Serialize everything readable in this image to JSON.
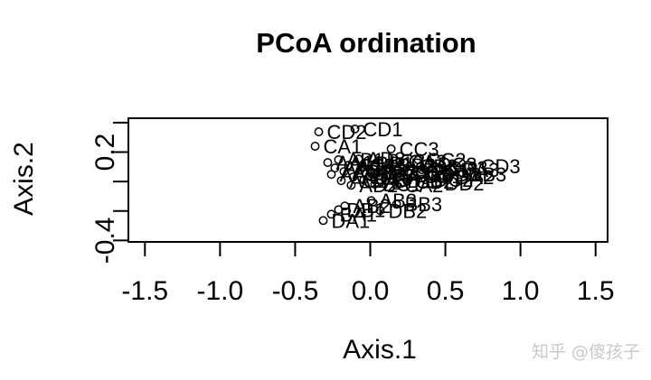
{
  "watermark": "知乎 @傻孩子",
  "chart_data": {
    "type": "scatter",
    "title": "PCoA ordination",
    "xlabel": "Axis.1",
    "ylabel": "Axis.2",
    "xlim": [
      -1.61,
      1.58
    ],
    "ylim": [
      -0.41,
      0.43
    ],
    "grid": false,
    "legend": "none",
    "marker": "open-circle",
    "marker_color": "#000000",
    "x_ticks": [
      {
        "value": -1.5,
        "label": "-1.5"
      },
      {
        "value": -1.0,
        "label": "-1.0"
      },
      {
        "value": -0.5,
        "label": "-0.5"
      },
      {
        "value": 0.0,
        "label": "0.0"
      },
      {
        "value": 0.5,
        "label": "0.5"
      },
      {
        "value": 1.0,
        "label": "1.0"
      },
      {
        "value": 1.5,
        "label": "1.5"
      }
    ],
    "y_ticks": [
      {
        "value": 0.4,
        "label": ""
      },
      {
        "value": 0.2,
        "label": "0.2"
      },
      {
        "value": 0.0,
        "label": ""
      },
      {
        "value": -0.2,
        "label": ""
      },
      {
        "value": -0.4,
        "label": "-0.4"
      }
    ],
    "points": [
      {
        "label": "CD2",
        "x": -0.343,
        "y": 0.338
      },
      {
        "label": "CD1",
        "x": -0.102,
        "y": 0.357
      },
      {
        "label": "CA1",
        "x": -0.367,
        "y": 0.24
      },
      {
        "label": "CC3",
        "x": 0.139,
        "y": 0.222
      },
      {
        "label": "AA1",
        "x": -0.283,
        "y": 0.129
      },
      {
        "label": "AA2",
        "x": -0.235,
        "y": 0.092
      },
      {
        "label": "AA3",
        "x": -0.259,
        "y": 0.049
      },
      {
        "label": "AB1",
        "x": -0.211,
        "y": 0.148
      },
      {
        "label": "AC1",
        "x": -0.175,
        "y": 0.068
      },
      {
        "label": "AC2",
        "x": -0.193,
        "y": 0.006
      },
      {
        "label": "AC3",
        "x": -0.145,
        "y": 0.111
      },
      {
        "label": "AD1",
        "x": -0.114,
        "y": 0.031
      },
      {
        "label": "AD2",
        "x": -0.127,
        "y": -0.025
      },
      {
        "label": "AD3",
        "x": -0.078,
        "y": 0.154
      },
      {
        "label": "BA2",
        "x": -0.066,
        "y": 0.08
      },
      {
        "label": "BA3",
        "x": -0.042,
        "y": 0.012
      },
      {
        "label": "BB1",
        "x": -0.018,
        "y": 0.123
      },
      {
        "label": "BB2",
        "x": 0.006,
        "y": 0.055
      },
      {
        "label": "BC1",
        "x": 0.03,
        "y": -0.018
      },
      {
        "label": "BC2",
        "x": 0.054,
        "y": 0.142
      },
      {
        "label": "BC3",
        "x": 0.078,
        "y": 0.068
      },
      {
        "label": "BD1",
        "x": 0.102,
        "y": 0.006
      },
      {
        "label": "BD2",
        "x": 0.127,
        "y": 0.111
      },
      {
        "label": "BD3",
        "x": 0.151,
        "y": 0.043
      },
      {
        "label": "CA2",
        "x": 0.175,
        "y": -0.025
      },
      {
        "label": "CA3",
        "x": 0.199,
        "y": 0.135
      },
      {
        "label": "CB1",
        "x": 0.223,
        "y": 0.062
      },
      {
        "label": "CB2",
        "x": 0.247,
        "y": 0.0
      },
      {
        "label": "CB3",
        "x": 0.271,
        "y": 0.105
      },
      {
        "label": "CC1",
        "x": 0.295,
        "y": 0.037
      },
      {
        "label": "CC2",
        "x": 0.319,
        "y": 0.148
      },
      {
        "label": "DC1",
        "x": 0.343,
        "y": 0.08
      },
      {
        "label": "DC2",
        "x": 0.367,
        "y": 0.012
      },
      {
        "label": "DC3",
        "x": 0.392,
        "y": 0.117
      },
      {
        "label": "DD1",
        "x": 0.416,
        "y": 0.049
      },
      {
        "label": "DD2",
        "x": 0.44,
        "y": -0.012
      },
      {
        "label": "DD3",
        "x": 0.464,
        "y": 0.092
      },
      {
        "label": "DA2",
        "x": 0.512,
        "y": 0.031
      },
      {
        "label": "DA3",
        "x": 0.548,
        "y": 0.08
      },
      {
        "label": "DB3",
        "x": 0.596,
        "y": 0.049
      },
      {
        "label": "CD3",
        "x": 0.681,
        "y": 0.105
      },
      {
        "label": "AB3",
        "x": 0.006,
        "y": -0.129
      },
      {
        "label": "BB3",
        "x": 0.175,
        "y": -0.154
      },
      {
        "label": "DB2",
        "x": 0.066,
        "y": -0.197
      },
      {
        "label": "AB2",
        "x": -0.169,
        "y": -0.166
      },
      {
        "label": "DB1",
        "x": -0.211,
        "y": -0.191
      },
      {
        "label": "BA1",
        "x": -0.259,
        "y": -0.222
      },
      {
        "label": "DA1",
        "x": -0.313,
        "y": -0.265
      }
    ]
  }
}
